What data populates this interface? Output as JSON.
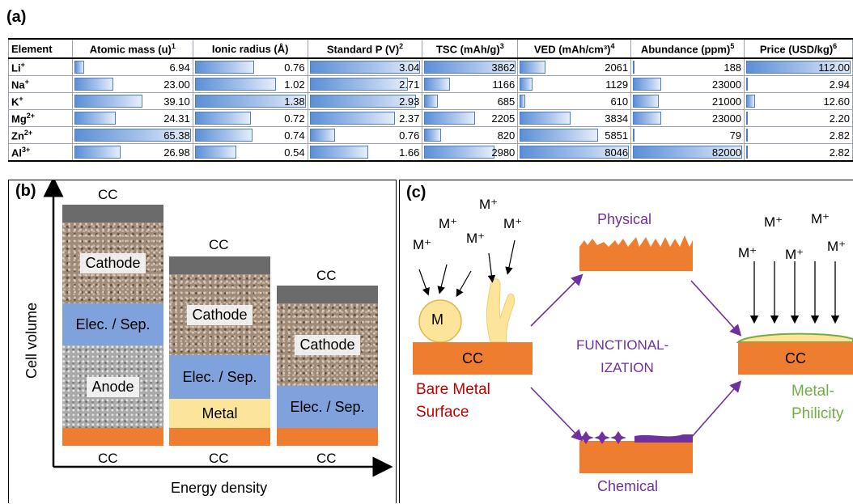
{
  "labels": {
    "a": "(a)",
    "b": "(b)",
    "c": "(c)"
  },
  "table": {
    "headers": [
      {
        "text": "Element",
        "sup": ""
      },
      {
        "text": "Atomic mass (u)",
        "sup": "1"
      },
      {
        "text": "Ionic radius (Å)",
        "sup": ""
      },
      {
        "text": "Standard P (V)",
        "sup": "2"
      },
      {
        "text": "TSC (mAh/g)",
        "sup": "3"
      },
      {
        "text": "VED (mAh/cm³)",
        "sup": "4"
      },
      {
        "text": "Abundance (ppm)",
        "sup": "5"
      },
      {
        "text": "Price (USD/kg)",
        "sup": "6"
      }
    ],
    "rows": [
      {
        "el": "Li",
        "ch": "+",
        "values": [
          "6.94",
          "0.76",
          "3.04",
          "3862",
          "2061",
          "188",
          "112.00"
        ],
        "fill": [
          0.106,
          0.551,
          1.0,
          1.0,
          0.256,
          0.002,
          1.0
        ]
      },
      {
        "el": "Na",
        "ch": "+",
        "values": [
          "23.00",
          "1.02",
          "2.71",
          "1166",
          "1129",
          "23000",
          "2.94"
        ],
        "fill": [
          0.352,
          0.739,
          0.891,
          0.302,
          0.14,
          0.28,
          0.026
        ]
      },
      {
        "el": "K",
        "ch": "+",
        "values": [
          "39.10",
          "1.38",
          "2.93",
          "685",
          "610",
          "21000",
          "12.60"
        ],
        "fill": [
          0.598,
          1.0,
          0.964,
          0.177,
          0.076,
          0.256,
          0.113
        ]
      },
      {
        "el": "Mg",
        "ch": "2+",
        "values": [
          "24.31",
          "0.72",
          "2.37",
          "2205",
          "3834",
          "23000",
          "2.20"
        ],
        "fill": [
          0.372,
          0.522,
          0.78,
          0.571,
          0.477,
          0.28,
          0.02
        ]
      },
      {
        "el": "Zn",
        "ch": "2+",
        "values": [
          "65.38",
          "0.74",
          "0.76",
          "820",
          "5851",
          "79",
          "2.82"
        ],
        "fill": [
          1.0,
          0.536,
          0.25,
          0.212,
          0.727,
          0.001,
          0.025
        ]
      },
      {
        "el": "Al",
        "ch": "3+",
        "values": [
          "26.98",
          "0.54",
          "1.66",
          "2980",
          "8046",
          "82000",
          "2.82"
        ],
        "fill": [
          0.413,
          0.391,
          0.546,
          0.772,
          1.0,
          1.0,
          0.025
        ]
      }
    ]
  },
  "panel_b": {
    "y_label": "Cell volume",
    "x_label": "Energy density",
    "cc": "CC",
    "cathode": "Cathode",
    "anode": "Anode",
    "sep": "Elec. / Sep.",
    "metal": "Metal"
  },
  "panel_c": {
    "m_plus": "M⁺",
    "m": "M",
    "cc": "CC",
    "bare_line1": "Bare Metal",
    "bare_line2": "Surface",
    "physical": "Physical",
    "chemical": "Chemical",
    "func_line1": "FUNCTIONAL-",
    "func_line2": "IZATION",
    "philic_line1": "Metal-",
    "philic_line2": "Philicity"
  },
  "colors": {
    "orange": "#ef7d2f",
    "purple": "#7030a0",
    "red": "#c00000",
    "green": "#70ad47",
    "separator": "#7fa1dc",
    "metal": "#fde49b",
    "dendrite": "#fde49b"
  }
}
